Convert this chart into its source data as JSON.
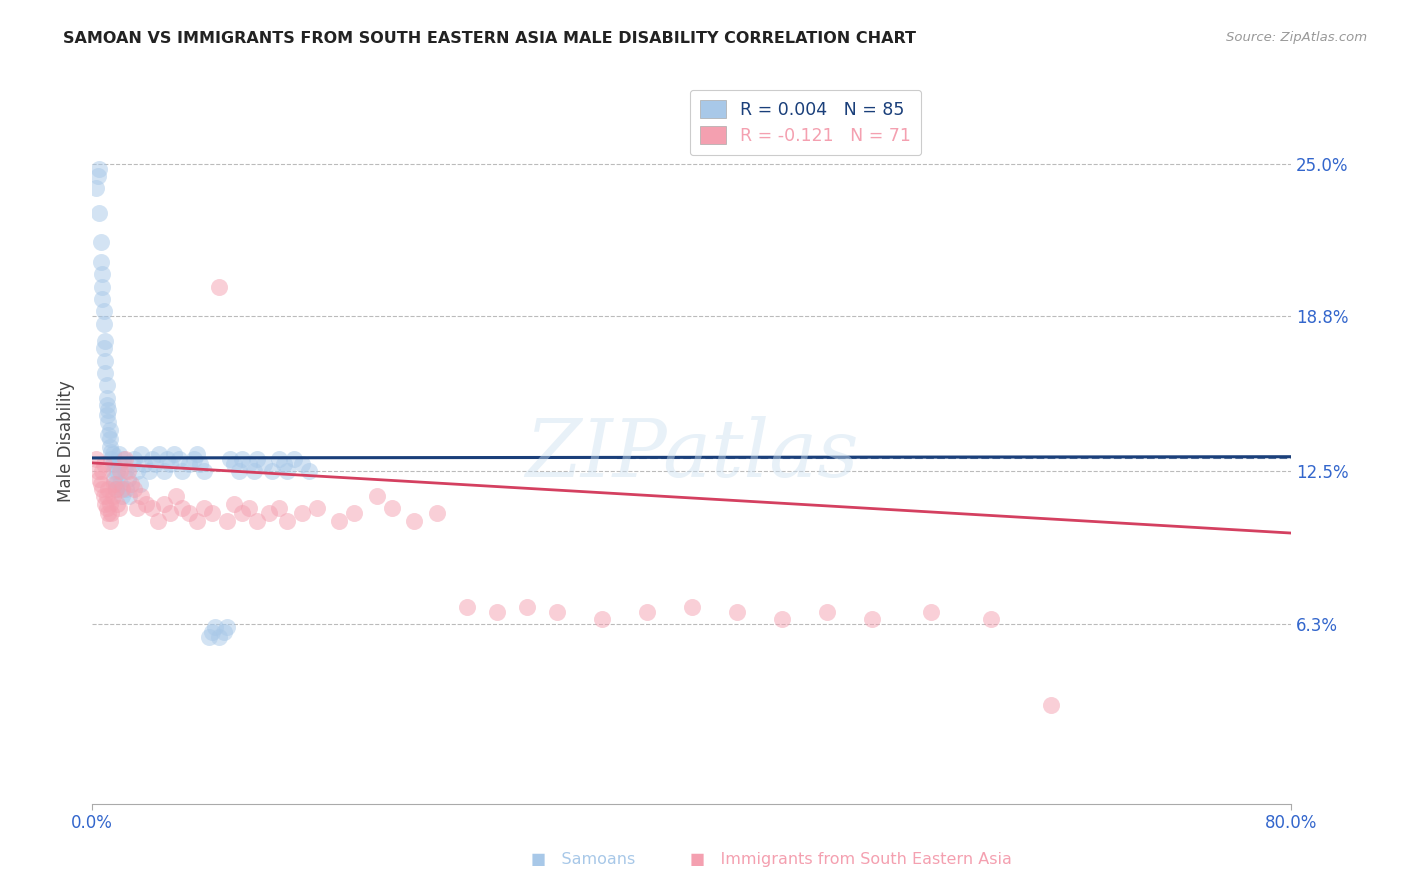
{
  "title": "SAMOAN VS IMMIGRANTS FROM SOUTH EASTERN ASIA MALE DISABILITY CORRELATION CHART",
  "source": "Source: ZipAtlas.com",
  "ylabel": "Male Disability",
  "ytick_labels": [
    "25.0%",
    "18.8%",
    "12.5%",
    "6.3%"
  ],
  "ytick_values": [
    0.25,
    0.188,
    0.125,
    0.063
  ],
  "xmin": 0.0,
  "xmax": 0.8,
  "ymin": -0.01,
  "ymax": 0.285,
  "color_samoans": "#a8c8e8",
  "color_immigrants": "#f4a0b0",
  "trendline_color_samoans": "#1a3f7a",
  "trendline_color_immigrants": "#d44060",
  "watermark": "ZIPatlas",
  "samoans_x": [
    0.003,
    0.004,
    0.005,
    0.005,
    0.006,
    0.006,
    0.007,
    0.007,
    0.007,
    0.008,
    0.008,
    0.008,
    0.009,
    0.009,
    0.009,
    0.01,
    0.01,
    0.01,
    0.01,
    0.011,
    0.011,
    0.011,
    0.012,
    0.012,
    0.012,
    0.013,
    0.013,
    0.014,
    0.014,
    0.015,
    0.015,
    0.016,
    0.016,
    0.017,
    0.018,
    0.018,
    0.019,
    0.02,
    0.021,
    0.022,
    0.023,
    0.024,
    0.025,
    0.027,
    0.028,
    0.03,
    0.032,
    0.033,
    0.035,
    0.038,
    0.04,
    0.042,
    0.045,
    0.048,
    0.05,
    0.052,
    0.055,
    0.058,
    0.06,
    0.065,
    0.068,
    0.07,
    0.072,
    0.075,
    0.078,
    0.08,
    0.082,
    0.085,
    0.088,
    0.09,
    0.092,
    0.095,
    0.098,
    0.1,
    0.105,
    0.108,
    0.11,
    0.115,
    0.12,
    0.125,
    0.128,
    0.13,
    0.135,
    0.14,
    0.145
  ],
  "samoans_y": [
    0.24,
    0.245,
    0.23,
    0.248,
    0.21,
    0.218,
    0.195,
    0.2,
    0.205,
    0.185,
    0.19,
    0.175,
    0.17,
    0.178,
    0.165,
    0.155,
    0.16,
    0.148,
    0.152,
    0.145,
    0.14,
    0.15,
    0.135,
    0.138,
    0.142,
    0.13,
    0.133,
    0.128,
    0.132,
    0.125,
    0.122,
    0.12,
    0.118,
    0.125,
    0.128,
    0.132,
    0.12,
    0.115,
    0.13,
    0.125,
    0.118,
    0.122,
    0.115,
    0.128,
    0.13,
    0.125,
    0.12,
    0.132,
    0.128,
    0.125,
    0.13,
    0.128,
    0.132,
    0.125,
    0.13,
    0.128,
    0.132,
    0.13,
    0.125,
    0.128,
    0.13,
    0.132,
    0.128,
    0.125,
    0.058,
    0.06,
    0.062,
    0.058,
    0.06,
    0.062,
    0.13,
    0.128,
    0.125,
    0.13,
    0.128,
    0.125,
    0.13,
    0.128,
    0.125,
    0.13,
    0.128,
    0.125,
    0.13,
    0.128,
    0.125
  ],
  "immigrants_x": [
    0.003,
    0.004,
    0.005,
    0.006,
    0.007,
    0.007,
    0.008,
    0.008,
    0.009,
    0.01,
    0.01,
    0.011,
    0.011,
    0.012,
    0.012,
    0.013,
    0.014,
    0.015,
    0.016,
    0.017,
    0.018,
    0.019,
    0.02,
    0.022,
    0.024,
    0.026,
    0.028,
    0.03,
    0.033,
    0.036,
    0.04,
    0.044,
    0.048,
    0.052,
    0.056,
    0.06,
    0.065,
    0.07,
    0.075,
    0.08,
    0.085,
    0.09,
    0.095,
    0.1,
    0.105,
    0.11,
    0.118,
    0.125,
    0.13,
    0.14,
    0.15,
    0.165,
    0.175,
    0.19,
    0.2,
    0.215,
    0.23,
    0.25,
    0.27,
    0.29,
    0.31,
    0.34,
    0.37,
    0.4,
    0.43,
    0.46,
    0.49,
    0.52,
    0.56,
    0.6,
    0.64
  ],
  "immigrants_y": [
    0.13,
    0.125,
    0.122,
    0.12,
    0.118,
    0.125,
    0.115,
    0.128,
    0.112,
    0.11,
    0.115,
    0.108,
    0.118,
    0.105,
    0.112,
    0.108,
    0.115,
    0.12,
    0.118,
    0.112,
    0.11,
    0.125,
    0.118,
    0.13,
    0.125,
    0.12,
    0.118,
    0.11,
    0.115,
    0.112,
    0.11,
    0.105,
    0.112,
    0.108,
    0.115,
    0.11,
    0.108,
    0.105,
    0.11,
    0.108,
    0.2,
    0.105,
    0.112,
    0.108,
    0.11,
    0.105,
    0.108,
    0.11,
    0.105,
    0.108,
    0.11,
    0.105,
    0.108,
    0.115,
    0.11,
    0.105,
    0.108,
    0.07,
    0.068,
    0.07,
    0.068,
    0.065,
    0.068,
    0.07,
    0.068,
    0.065,
    0.068,
    0.065,
    0.068,
    0.065,
    0.03
  ],
  "samoans_trend_x": [
    0.0,
    0.8
  ],
  "samoans_trend_y": [
    0.1305,
    0.131
  ],
  "immigrants_trend_x": [
    0.0,
    0.8
  ],
  "immigrants_trend_y": [
    0.1285,
    0.1
  ],
  "dashed_line_y": 0.1305,
  "dashed_line_xstart": 0.35
}
